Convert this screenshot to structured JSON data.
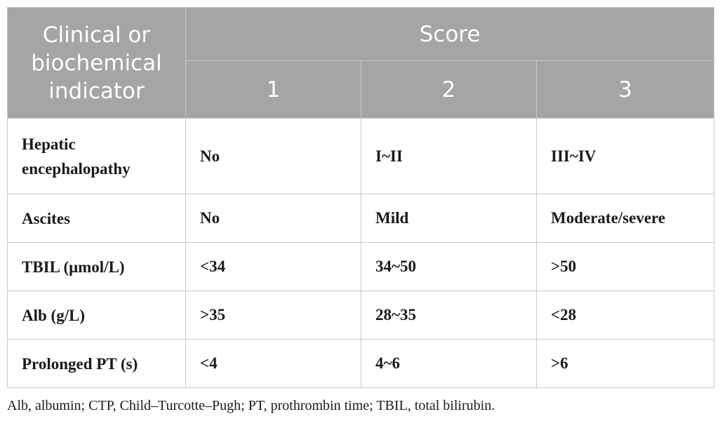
{
  "header": {
    "indicator_label": "Clinical or biochemical indicator",
    "score_label": "Score",
    "score_columns": [
      "1",
      "2",
      "3"
    ]
  },
  "rows": [
    {
      "indicator": "Hepatic encephalopathy",
      "s1": "No",
      "s2": "I~II",
      "s3": "III~IV"
    },
    {
      "indicator": "Ascites",
      "s1": "No",
      "s2": "Mild",
      "s3": "Moderate/severe"
    },
    {
      "indicator": "TBIL (μmol/L)",
      "s1": "<34",
      "s2": "34~50",
      "s3": ">50"
    },
    {
      "indicator": "Alb (g/L)",
      "s1": ">35",
      "s2": "28~35",
      "s3": "<28"
    },
    {
      "indicator": "Prolonged PT (s)",
      "s1": "<4",
      "s2": "4~6",
      "s3": ">6"
    }
  ],
  "footnote": "Alb, albumin; CTP, Child–Turcotte–Pugh; PT, prothrombin time; TBIL, total bilirubin.",
  "colors": {
    "header_bg": "#a5a5a5",
    "header_text": "#ffffff",
    "grid_line": "#c9c9c9",
    "body_text": "#1a1a1a"
  }
}
